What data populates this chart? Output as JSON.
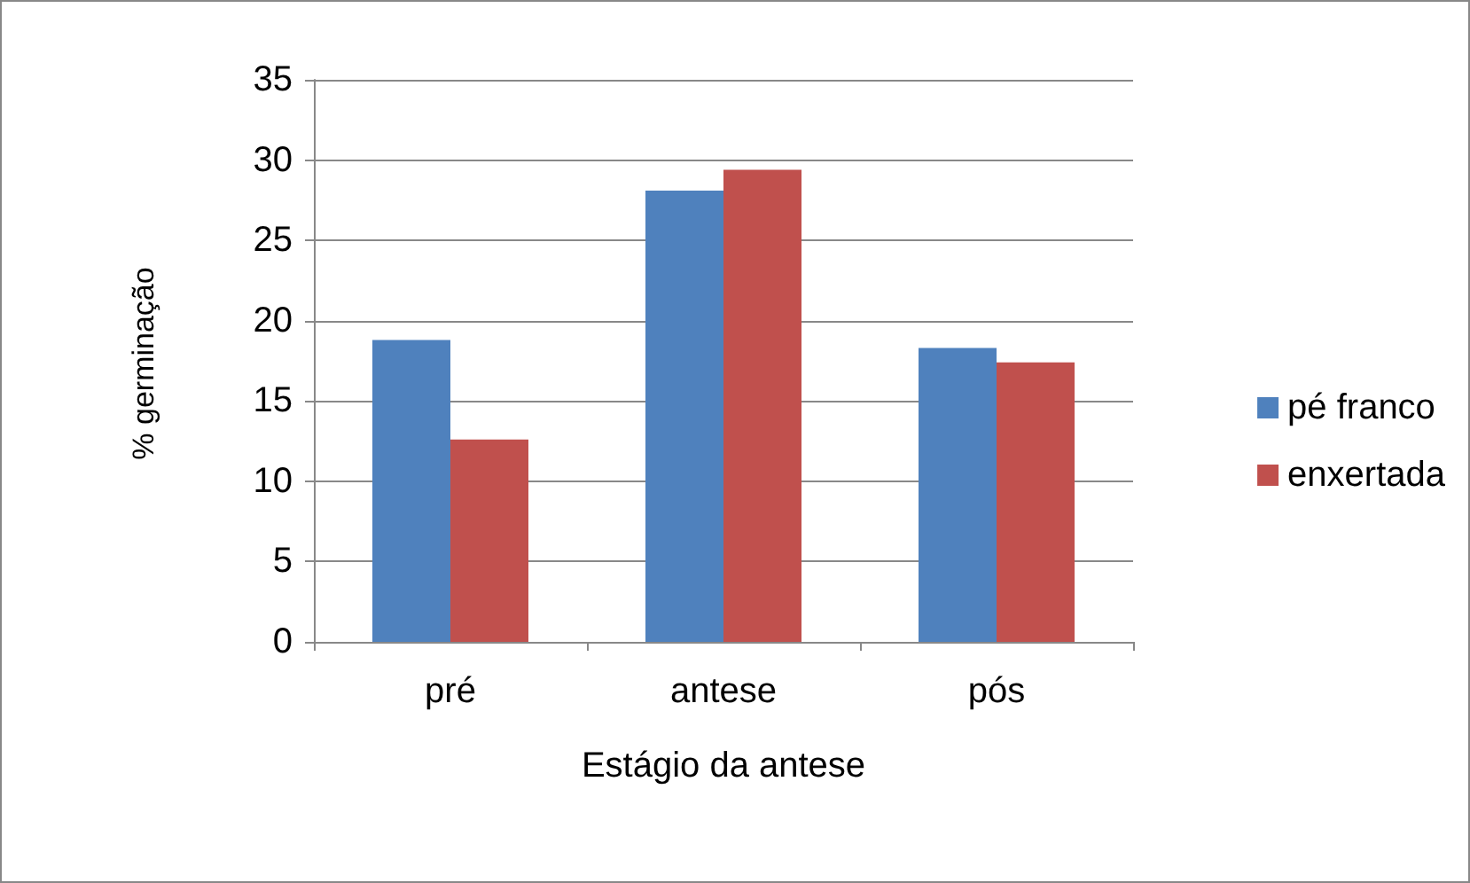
{
  "chart_data": {
    "type": "bar",
    "xlabel": "Estágio da antese",
    "ylabel": "% germinação",
    "categories": [
      "pré",
      "antese",
      "pós"
    ],
    "series": [
      {
        "name": "pé franco",
        "color": "#4f81bd",
        "values": [
          18.8,
          28.1,
          18.3
        ]
      },
      {
        "name": "enxertada",
        "color": "#c0504d",
        "values": [
          12.6,
          29.4,
          17.4
        ]
      }
    ],
    "ylim": [
      0,
      35
    ],
    "yticks": [
      0,
      5,
      10,
      15,
      20,
      25,
      30,
      35
    ],
    "grid": "y",
    "legend": "right"
  }
}
